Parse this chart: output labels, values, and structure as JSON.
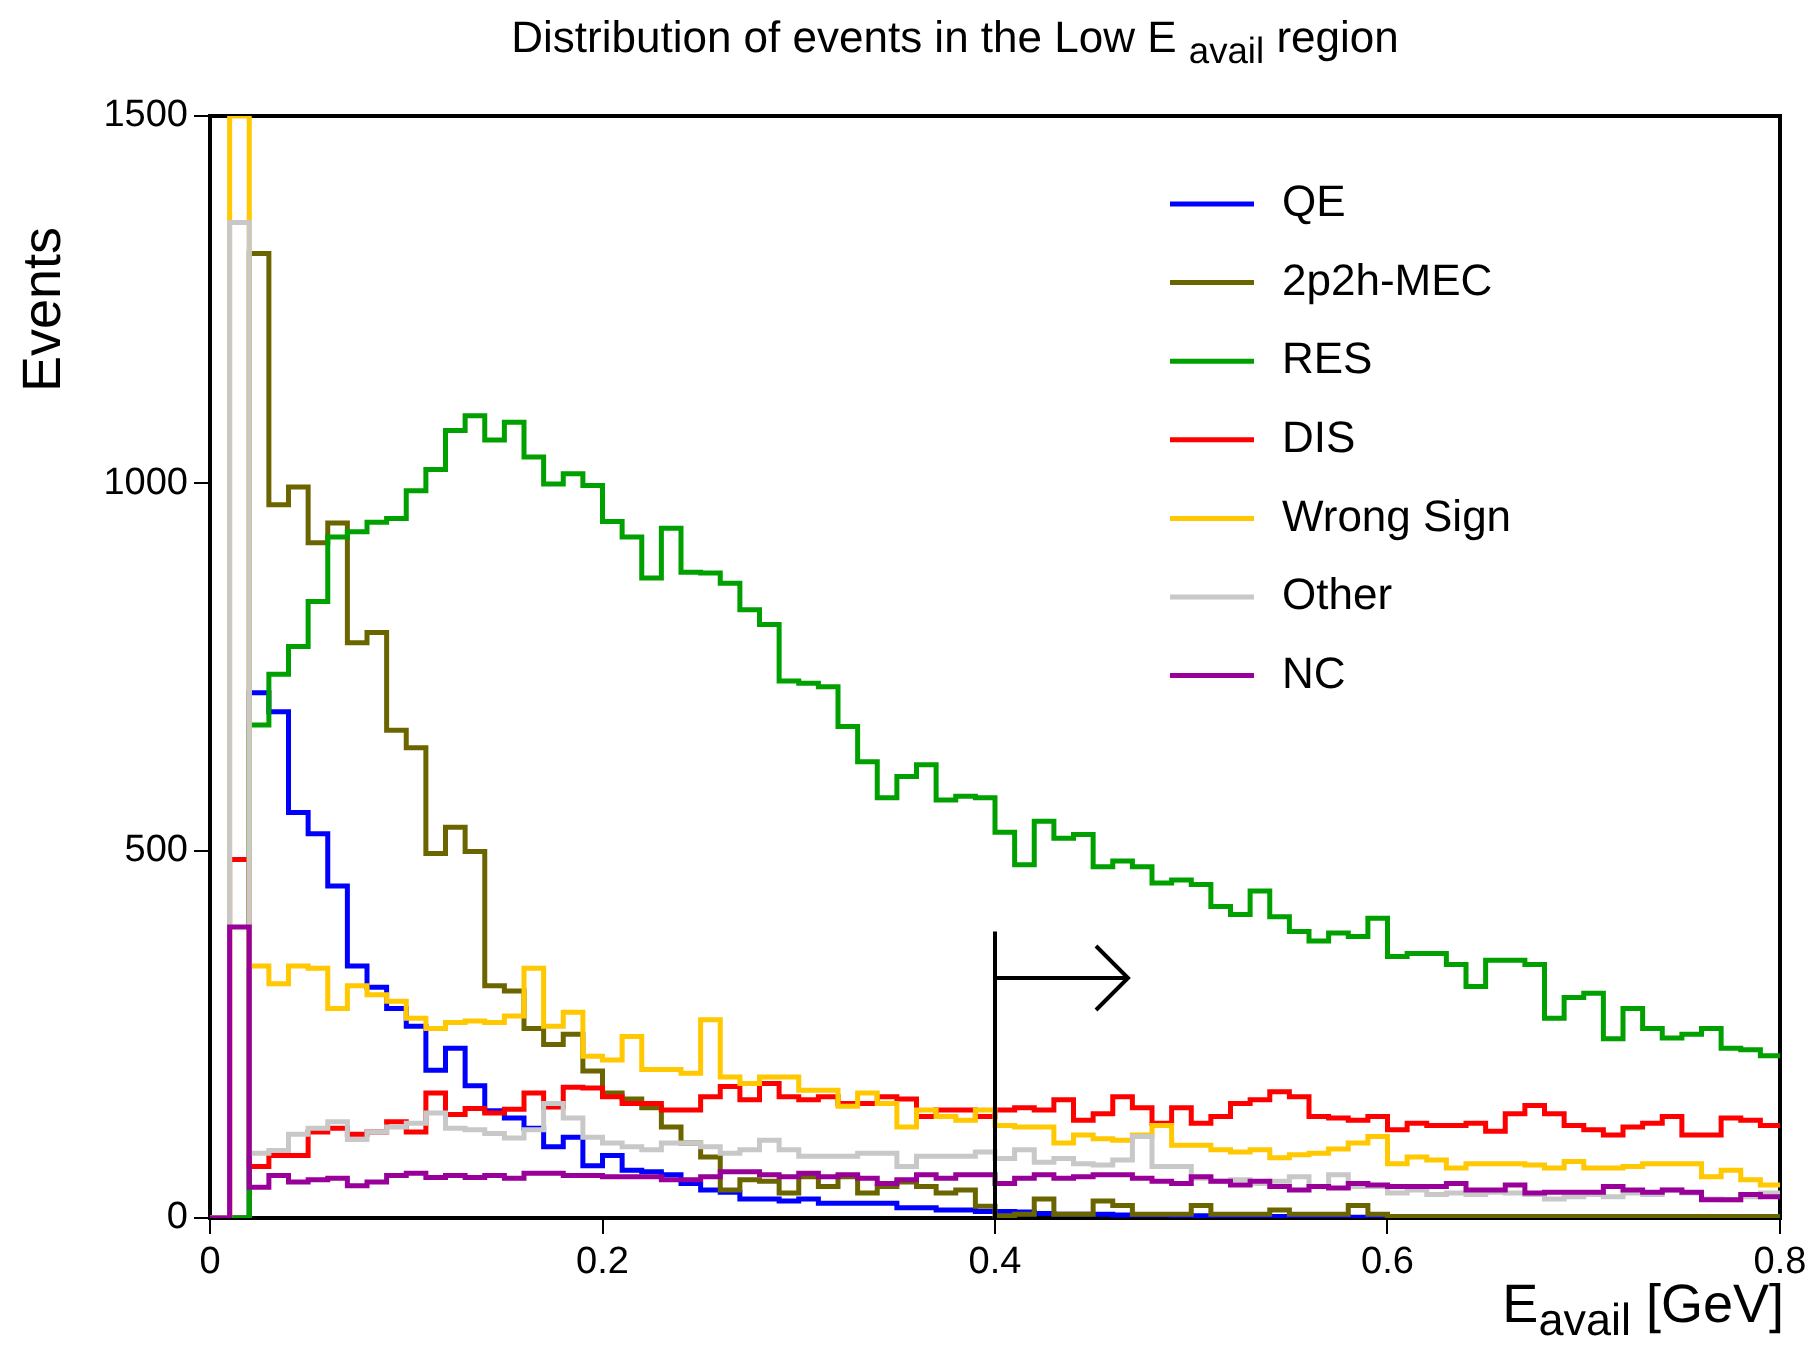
{
  "chart_data": {
    "type": "histogram",
    "title": "Distribution of events in the Low E $_{avail}$ region",
    "xlabel": "E$_{avail}$ [GeV]",
    "ylabel": "Events",
    "bins": [
      0,
      0.01,
      0.02,
      0.03,
      0.04,
      0.05,
      0.06,
      0.07,
      0.08,
      0.09,
      0.1,
      0.11,
      0.12,
      0.13,
      0.14,
      0.15,
      0.16,
      0.17,
      0.18,
      0.19,
      0.2,
      0.21,
      0.22,
      0.23,
      0.24,
      0.25,
      0.26,
      0.27,
      0.28,
      0.29,
      0.3,
      0.31,
      0.32,
      0.33,
      0.34,
      0.35,
      0.36,
      0.37,
      0.38,
      0.39,
      0.4,
      0.41,
      0.42,
      0.43,
      0.44,
      0.45,
      0.46,
      0.47,
      0.48,
      0.49,
      0.5,
      0.51,
      0.52,
      0.53,
      0.54,
      0.55,
      0.56,
      0.57,
      0.58,
      0.59,
      0.6,
      0.61,
      0.62,
      0.63,
      0.64,
      0.65,
      0.66,
      0.67,
      0.68,
      0.69,
      0.7,
      0.71,
      0.72,
      0.73,
      0.74,
      0.75,
      0.76,
      0.77,
      0.78,
      0.79,
      0.8
    ],
    "series": [
      {
        "name": "QE",
        "color": "#0000ff",
        "values": [
          0,
          null,
          715,
          689,
          552,
          523,
          452,
          343,
          314,
          285,
          261,
          201,
          231,
          180,
          146,
          136,
          122,
          97,
          110,
          71,
          85,
          65,
          63,
          59,
          47,
          38,
          35,
          26,
          26,
          23,
          26,
          20,
          20,
          20,
          20,
          14,
          14,
          11,
          11,
          9,
          9,
          8,
          6,
          5,
          5,
          5,
          4,
          4,
          4,
          3,
          3,
          3,
          3,
          2,
          2,
          2,
          2,
          2,
          1,
          1,
          0,
          0,
          0,
          0,
          0,
          0,
          0,
          0,
          0,
          0,
          0,
          0,
          0,
          0,
          0,
          0,
          0,
          0,
          0,
          0
        ]
      },
      {
        "name": "2p2h-MEC",
        "color": "#6b6500",
        "values": [
          0,
          0,
          1313,
          971,
          995,
          919,
          946,
          783,
          797,
          664,
          640,
          496,
          532,
          499,
          316,
          309,
          258,
          236,
          250,
          200,
          170,
          162,
          150,
          124,
          102,
          83,
          38,
          52,
          50,
          34,
          56,
          43,
          56,
          34,
          43,
          49,
          43,
          34,
          38,
          16,
          3,
          5,
          26,
          5,
          5,
          23,
          17,
          5,
          5,
          5,
          17,
          5,
          5,
          5,
          11,
          5,
          5,
          5,
          17,
          5,
          2,
          2,
          2,
          2,
          2,
          2,
          2,
          2,
          2,
          2,
          2,
          2,
          2,
          2,
          2,
          2,
          2,
          2,
          2,
          2
        ]
      },
      {
        "name": "RES",
        "color": "#00a000",
        "values": [
          0,
          0,
          671,
          740,
          778,
          839,
          927,
          934,
          947,
          952,
          990,
          1019,
          1072,
          1092,
          1059,
          1083,
          1036,
          999,
          1013,
          997,
          948,
          927,
          871,
          939,
          879,
          878,
          864,
          828,
          808,
          731,
          728,
          723,
          669,
          621,
          572,
          601,
          617,
          569,
          574,
          572,
          525,
          481,
          540,
          517,
          522,
          478,
          486,
          478,
          456,
          460,
          454,
          424,
          413,
          445,
          410,
          390,
          377,
          388,
          383,
          408,
          356,
          360,
          360,
          345,
          315,
          351,
          351,
          345,
          272,
          300,
          306,
          244,
          285,
          258,
          245,
          250,
          258,
          231,
          229,
          221
        ]
      },
      {
        "name": "DIS",
        "color": "#ff0000",
        "values": [
          0,
          488,
          70,
          85,
          85,
          117,
          122,
          114,
          117,
          131,
          117,
          170,
          141,
          149,
          143,
          148,
          170,
          151,
          178,
          177,
          165,
          156,
          156,
          147,
          147,
          165,
          179,
          161,
          183,
          165,
          161,
          165,
          156,
          156,
          165,
          162,
          138,
          147,
          147,
          138,
          147,
          150,
          147,
          161,
          133,
          142,
          165,
          150,
          129,
          150,
          129,
          138,
          156,
          161,
          172,
          165,
          138,
          136,
          133,
          138,
          120,
          129,
          126,
          126,
          129,
          118,
          142,
          153,
          142,
          126,
          120,
          113,
          124,
          129,
          138,
          113,
          113,
          136,
          133,
          126
        ]
      },
      {
        "name": "Wrong Sign",
        "color": "#ffc800",
        "values": [
          0,
          1500,
          343,
          319,
          343,
          340,
          285,
          316,
          304,
          295,
          272,
          258,
          266,
          268,
          266,
          275,
          340,
          261,
          280,
          220,
          215,
          247,
          202,
          202,
          197,
          270,
          192,
          183,
          192,
          192,
          174,
          174,
          152,
          170,
          156,
          124,
          147,
          138,
          133,
          147,
          126,
          124,
          124,
          102,
          113,
          108,
          106,
          113,
          126,
          99,
          99,
          93,
          90,
          93,
          82,
          86,
          88,
          94,
          102,
          111,
          74,
          83,
          79,
          68,
          74,
          74,
          74,
          72,
          68,
          77,
          68,
          68,
          70,
          74,
          74,
          74,
          56,
          65,
          52,
          45
        ]
      },
      {
        "name": "Other",
        "color": "#c8c8c8",
        "values": [
          0,
          1355,
          88,
          92,
          114,
          122,
          131,
          107,
          117,
          124,
          129,
          143,
          122,
          120,
          115,
          109,
          120,
          156,
          136,
          110,
          102,
          97,
          93,
          102,
          102,
          97,
          88,
          93,
          106,
          93,
          84,
          84,
          84,
          88,
          88,
          70,
          84,
          84,
          84,
          90,
          81,
          93,
          76,
          81,
          74,
          72,
          79,
          111,
          70,
          70,
          54,
          50,
          52,
          47,
          50,
          56,
          43,
          59,
          43,
          43,
          34,
          38,
          32,
          34,
          32,
          35,
          34,
          32,
          26,
          29,
          32,
          29,
          34,
          32,
          38,
          34,
          26,
          25,
          29,
          34
        ]
      },
      {
        "name": "NC",
        "color": "#990099",
        "values": [
          0,
          396,
          42,
          58,
          49,
          52,
          54,
          44,
          49,
          58,
          61,
          55,
          58,
          55,
          58,
          54,
          61,
          61,
          58,
          58,
          56,
          56,
          56,
          52,
          52,
          56,
          63,
          63,
          59,
          56,
          61,
          56,
          59,
          54,
          47,
          52,
          59,
          54,
          59,
          59,
          47,
          54,
          59,
          54,
          56,
          59,
          59,
          54,
          50,
          47,
          56,
          50,
          45,
          50,
          43,
          38,
          43,
          41,
          47,
          45,
          43,
          43,
          43,
          47,
          38,
          38,
          45,
          34,
          35,
          35,
          35,
          43,
          38,
          35,
          38,
          35,
          25,
          25,
          32,
          29
        ]
      }
    ],
    "xlim": [
      0,
      0.8
    ],
    "xticks": [
      0,
      0.2,
      0.4,
      0.6,
      0.8
    ],
    "ylim": [
      0,
      1500
    ],
    "yticks": [
      0,
      500,
      1000,
      1500
    ],
    "ref_lines": [
      {
        "axis": "x",
        "value": 0.4,
        "color": "#000000"
      }
    ],
    "grid": false,
    "legend": "top right"
  }
}
